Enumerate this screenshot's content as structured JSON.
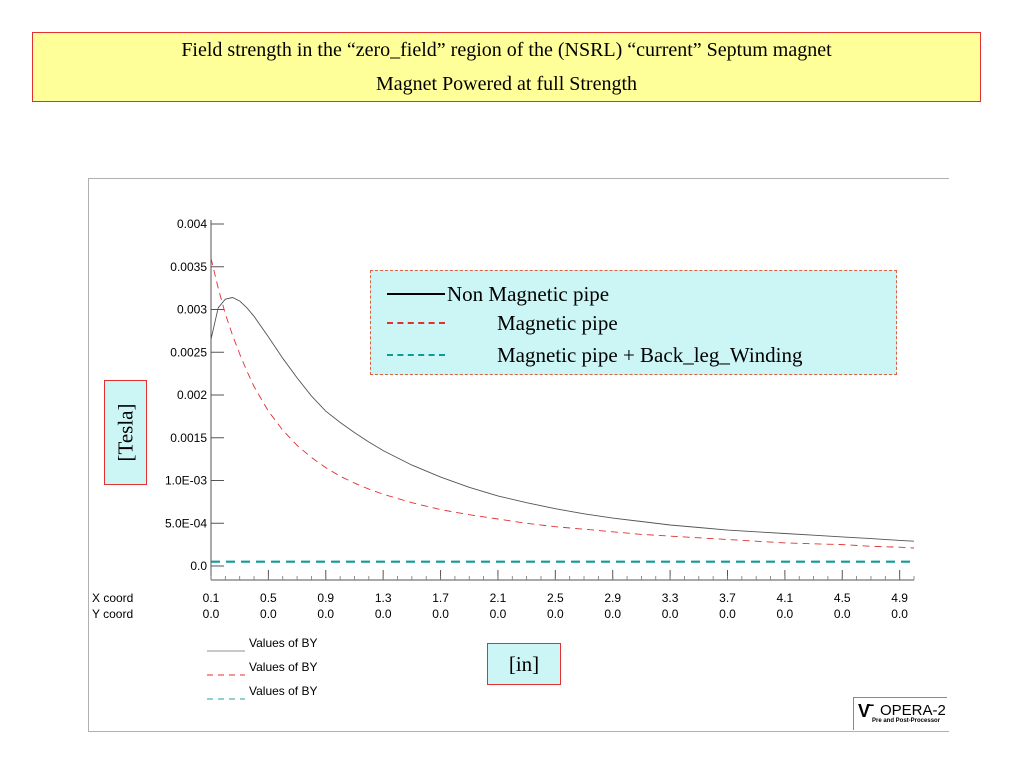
{
  "title": {
    "line1": "Field strength in the “zero_field” region of the (NSRL) “current” Septum  magnet",
    "line2": "Magnet Powered at full Strength"
  },
  "legend": [
    {
      "label": "Non Magnetic pipe",
      "color": "#000000",
      "style": "solid"
    },
    {
      "label": "Magnetic pipe",
      "color": "#e03030",
      "style": "dashed"
    },
    {
      "label": "Magnetic pipe + Back_leg_Winding",
      "color": "#109a9a",
      "style": "dashed"
    }
  ],
  "units": {
    "y": "[Tesla]",
    "x": "[in]"
  },
  "plot_legend": [
    {
      "label": "Values of BY",
      "color": "#909090"
    },
    {
      "label": "Values of BY",
      "color": "#e03030"
    },
    {
      "label": "Values of BY",
      "color": "#20a0a0"
    }
  ],
  "logo": {
    "name": "OPERA-2",
    "subtitle": "Pre and Post-Processor"
  },
  "chart_data": {
    "type": "line",
    "xlabel": "[in]",
    "ylabel": "[Tesla]",
    "xlim": [
      0.1,
      5.0
    ],
    "ylim": [
      0,
      0.004
    ],
    "grid": false,
    "y_ticks": [
      0.0,
      0.0005,
      0.001,
      0.0015,
      0.002,
      0.0025,
      0.003,
      0.0035,
      0.004
    ],
    "y_tick_labels": [
      "0.0",
      "5.0E-04",
      "1.0E-03",
      "0.0015",
      "0.002",
      "0.0025",
      "0.003",
      "0.0035",
      "0.004"
    ],
    "x_row_label": "X coord",
    "y_row_label": "Y coord",
    "x_ticks": [
      "0.1",
      "0.5",
      "0.9",
      "1.3",
      "1.7",
      "2.1",
      "2.5",
      "2.9",
      "3.3",
      "3.7",
      "4.1",
      "4.5",
      "4.9"
    ],
    "y_coord_values": [
      "0.0",
      "0.0",
      "0.0",
      "0.0",
      "0.0",
      "0.0",
      "0.0",
      "0.0",
      "0.0",
      "0.0",
      "0.0",
      "0.0",
      "0.0"
    ],
    "series": [
      {
        "name": "Non Magnetic pipe",
        "x": [
          0.1,
          0.15,
          0.2,
          0.25,
          0.3,
          0.35,
          0.4,
          0.5,
          0.6,
          0.7,
          0.8,
          0.9,
          1.0,
          1.1,
          1.2,
          1.3,
          1.5,
          1.7,
          1.9,
          2.1,
          2.3,
          2.5,
          2.7,
          2.9,
          3.1,
          3.3,
          3.5,
          3.7,
          3.9,
          4.1,
          4.3,
          4.5,
          4.7,
          4.9,
          5.0
        ],
        "y": [
          0.00265,
          0.00302,
          0.00312,
          0.00314,
          0.0031,
          0.00302,
          0.00292,
          0.00268,
          0.00243,
          0.0022,
          0.00199,
          0.00181,
          0.00168,
          0.00156,
          0.00145,
          0.00135,
          0.00118,
          0.00104,
          0.00092,
          0.00082,
          0.00074,
          0.00067,
          0.00061,
          0.00056,
          0.00052,
          0.00048,
          0.00045,
          0.00042,
          0.0004,
          0.00038,
          0.00036,
          0.00034,
          0.00032,
          0.0003,
          0.00029
        ]
      },
      {
        "name": "Magnetic pipe",
        "x": [
          0.1,
          0.15,
          0.2,
          0.25,
          0.3,
          0.35,
          0.4,
          0.5,
          0.6,
          0.7,
          0.8,
          0.9,
          1.0,
          1.1,
          1.2,
          1.3,
          1.5,
          1.7,
          1.9,
          2.1,
          2.3,
          2.5,
          2.7,
          2.9,
          3.1,
          3.3,
          3.5,
          3.7,
          3.9,
          4.1,
          4.3,
          4.5,
          4.7,
          4.9,
          5.0
        ],
        "y": [
          0.0036,
          0.00325,
          0.00295,
          0.0027,
          0.00248,
          0.00228,
          0.0021,
          0.00181,
          0.00159,
          0.00141,
          0.00127,
          0.00115,
          0.00105,
          0.00097,
          0.0009,
          0.00084,
          0.00074,
          0.00066,
          0.0006,
          0.00055,
          0.0005,
          0.00046,
          0.00043,
          0.0004,
          0.00037,
          0.00035,
          0.00033,
          0.00031,
          0.00029,
          0.00027,
          0.00026,
          0.00025,
          0.00023,
          0.00022,
          0.00021
        ]
      },
      {
        "name": "Magnetic pipe + Back_leg_Winding",
        "x": [
          0.1,
          5.0
        ],
        "y": [
          5e-05,
          5e-05
        ]
      }
    ]
  }
}
